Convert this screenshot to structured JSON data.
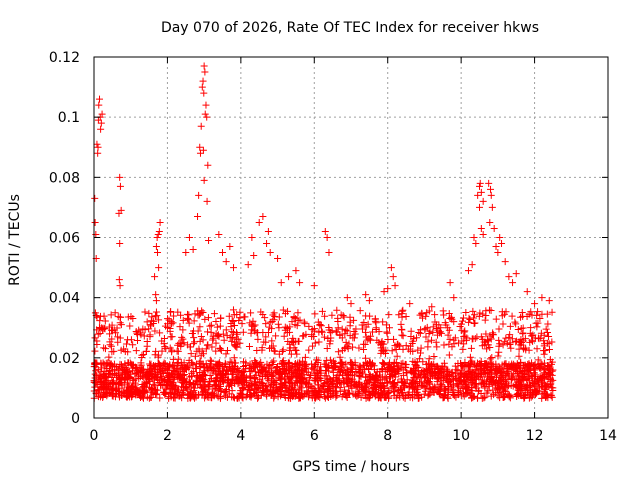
{
  "chart_data": {
    "type": "scatter",
    "title": "Day 070 of 2026, Rate Of TEC Index for receiver hkws",
    "xlabel": "GPS time / hours",
    "ylabel": "ROTI / TECUs",
    "xlim": [
      0,
      14
    ],
    "ylim": [
      0,
      0.12
    ],
    "x_ticks": [
      0,
      2,
      4,
      6,
      8,
      10,
      12,
      14
    ],
    "y_ticks": [
      0,
      0.02,
      0.04,
      0.06,
      0.08,
      0.1,
      0.12
    ],
    "x_tick_labels": [
      "0",
      "2",
      "4",
      "6",
      "8",
      "10",
      "12",
      "14"
    ],
    "y_tick_labels": [
      "0",
      "0.02",
      "0.04",
      "0.06",
      "0.08",
      "0.1",
      "0.12"
    ],
    "grid": true,
    "marker": "+",
    "color": "#ff0000",
    "series": [
      {
        "name": "ROTI",
        "description_of_dense_band": "continuous cloud of points from x=0 to x=12.5 concentrated between y=0.005 and y=0.03",
        "dense_band": {
          "x_range": [
            0,
            12.5
          ],
          "y_range": [
            0.004,
            0.03
          ]
        },
        "points": [
          [
            0.02,
            0.073
          ],
          [
            0.03,
            0.065
          ],
          [
            0.05,
            0.061
          ],
          [
            0.06,
            0.053
          ],
          [
            0.08,
            0.091
          ],
          [
            0.1,
            0.088
          ],
          [
            0.12,
            0.099
          ],
          [
            0.13,
            0.104
          ],
          [
            0.15,
            0.106
          ],
          [
            0.17,
            0.1
          ],
          [
            0.18,
            0.096
          ],
          [
            0.2,
            0.098
          ],
          [
            0.22,
            0.101
          ],
          [
            0.11,
            0.09
          ],
          [
            0.7,
            0.08
          ],
          [
            0.72,
            0.077
          ],
          [
            0.74,
            0.069
          ],
          [
            0.68,
            0.068
          ],
          [
            0.7,
            0.058
          ],
          [
            0.69,
            0.046
          ],
          [
            0.71,
            0.044
          ],
          [
            1.65,
            0.047
          ],
          [
            1.7,
            0.057
          ],
          [
            1.72,
            0.06
          ],
          [
            1.75,
            0.061
          ],
          [
            1.78,
            0.062
          ],
          [
            1.8,
            0.065
          ],
          [
            1.73,
            0.055
          ],
          [
            1.68,
            0.041
          ],
          [
            1.7,
            0.039
          ],
          [
            1.76,
            0.05
          ],
          [
            2.82,
            0.067
          ],
          [
            2.85,
            0.074
          ],
          [
            2.88,
            0.09
          ],
          [
            2.9,
            0.088
          ],
          [
            2.92,
            0.097
          ],
          [
            2.95,
            0.11
          ],
          [
            2.97,
            0.112
          ],
          [
            3.0,
            0.117
          ],
          [
            3.02,
            0.115
          ],
          [
            2.99,
            0.108
          ],
          [
            3.05,
            0.104
          ],
          [
            3.07,
            0.1
          ],
          [
            3.03,
            0.101
          ],
          [
            3.1,
            0.084
          ],
          [
            3.08,
            0.072
          ],
          [
            2.98,
            0.089
          ],
          [
            3.0,
            0.079
          ],
          [
            3.12,
            0.059
          ],
          [
            3.7,
            0.057
          ],
          [
            3.8,
            0.05
          ],
          [
            4.2,
            0.051
          ],
          [
            4.3,
            0.06
          ],
          [
            4.35,
            0.054
          ],
          [
            4.5,
            0.065
          ],
          [
            4.6,
            0.067
          ],
          [
            4.7,
            0.058
          ],
          [
            4.75,
            0.062
          ],
          [
            4.8,
            0.055
          ],
          [
            5.0,
            0.053
          ],
          [
            5.1,
            0.045
          ],
          [
            5.3,
            0.047
          ],
          [
            6.3,
            0.062
          ],
          [
            6.35,
            0.06
          ],
          [
            6.4,
            0.055
          ],
          [
            6.9,
            0.04
          ],
          [
            7.0,
            0.038
          ],
          [
            7.9,
            0.042
          ],
          [
            8.0,
            0.043
          ],
          [
            8.1,
            0.05
          ],
          [
            8.15,
            0.047
          ],
          [
            8.2,
            0.044
          ],
          [
            9.7,
            0.045
          ],
          [
            10.35,
            0.06
          ],
          [
            10.4,
            0.058
          ],
          [
            10.45,
            0.074
          ],
          [
            10.5,
            0.077
          ],
          [
            10.52,
            0.078
          ],
          [
            10.55,
            0.075
          ],
          [
            10.6,
            0.072
          ],
          [
            10.5,
            0.07
          ],
          [
            10.55,
            0.063
          ],
          [
            10.6,
            0.061
          ],
          [
            10.75,
            0.078
          ],
          [
            10.8,
            0.076
          ],
          [
            10.82,
            0.074
          ],
          [
            10.85,
            0.07
          ],
          [
            10.78,
            0.065
          ],
          [
            10.9,
            0.063
          ],
          [
            10.95,
            0.057
          ],
          [
            11.0,
            0.055
          ],
          [
            11.05,
            0.06
          ],
          [
            11.1,
            0.058
          ],
          [
            11.2,
            0.052
          ],
          [
            11.3,
            0.047
          ],
          [
            11.4,
            0.045
          ],
          [
            11.5,
            0.048
          ],
          [
            12.2,
            0.04
          ],
          [
            12.4,
            0.039
          ],
          [
            10.3,
            0.051
          ],
          [
            10.2,
            0.049
          ],
          [
            2.5,
            0.055
          ],
          [
            2.6,
            0.06
          ],
          [
            2.7,
            0.056
          ],
          [
            3.4,
            0.061
          ],
          [
            3.5,
            0.055
          ],
          [
            3.6,
            0.052
          ],
          [
            5.5,
            0.049
          ],
          [
            5.6,
            0.045
          ],
          [
            6.0,
            0.044
          ],
          [
            7.4,
            0.041
          ],
          [
            7.5,
            0.039
          ],
          [
            8.6,
            0.038
          ],
          [
            9.2,
            0.037
          ],
          [
            9.8,
            0.04
          ],
          [
            11.8,
            0.042
          ],
          [
            12.0,
            0.038
          ]
        ]
      }
    ]
  }
}
